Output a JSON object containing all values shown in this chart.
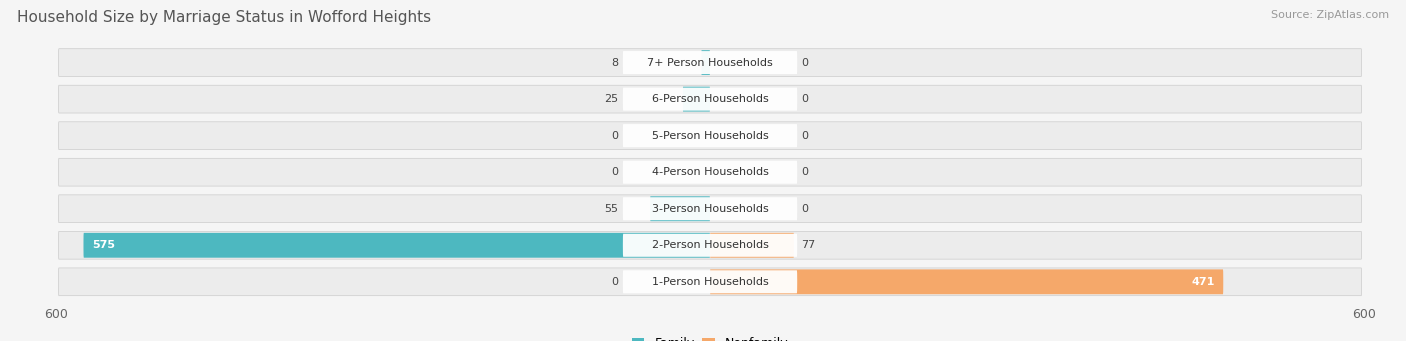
{
  "title": "Household Size by Marriage Status in Wofford Heights",
  "source": "Source: ZipAtlas.com",
  "categories": [
    "7+ Person Households",
    "6-Person Households",
    "5-Person Households",
    "4-Person Households",
    "3-Person Households",
    "2-Person Households",
    "1-Person Households"
  ],
  "family_values": [
    8,
    25,
    0,
    0,
    55,
    575,
    0
  ],
  "nonfamily_values": [
    0,
    0,
    0,
    0,
    0,
    77,
    471
  ],
  "family_color": "#4DB8C0",
  "nonfamily_color": "#F5A86A",
  "row_bg_color": "#e8e8e8",
  "row_bg_light": "#f0f0f0",
  "label_bg_color": "#ffffff",
  "fig_bg_color": "#f5f5f5",
  "axis_limit": 600,
  "title_fontsize": 11,
  "source_fontsize": 8,
  "tick_fontsize": 9,
  "bar_label_fontsize": 8,
  "category_fontsize": 8
}
